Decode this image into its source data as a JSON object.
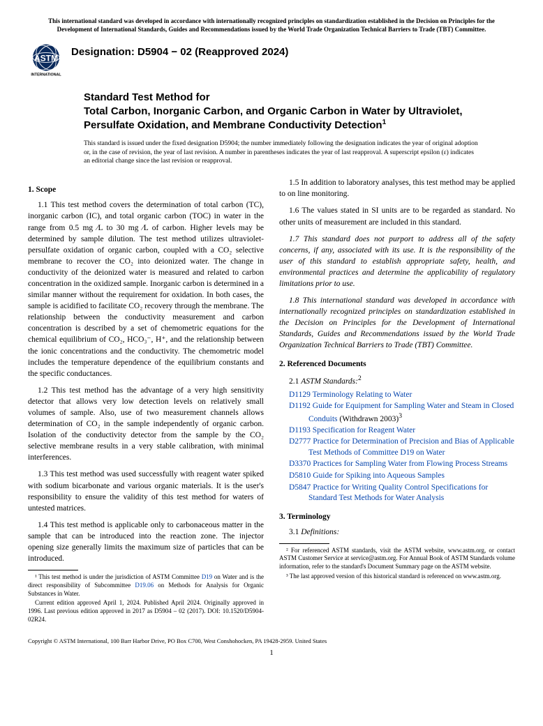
{
  "top_notice": "This international standard was developed in accordance with internationally recognized principles on standardization established in the Decision on Principles for the Development of International Standards, Guides and Recommendations issued by the World Trade Organization Technical Barriers to Trade (TBT) Committee.",
  "logo_text_top": "ASTM",
  "logo_text_bottom": "INTERNATIONAL",
  "designation": "Designation: D5904 − 02 (Reapproved 2024)",
  "title_prefix": "Standard Test Method for",
  "title_main": "Total Carbon, Inorganic Carbon, and Organic Carbon in Water by Ultraviolet, Persulfate Oxidation, and Membrane Conductivity Detection",
  "title_sup": "1",
  "issue_note": "This standard is issued under the fixed designation D5904; the number immediately following the designation indicates the year of original adoption or, in the case of revision, the year of last revision. A number in parentheses indicates the year of last reapproval. A superscript epsilon (ε) indicates an editorial change since the last revision or reapproval.",
  "sections": {
    "scope_head": "1. Scope",
    "p1_1": "1.1 This test method covers the determination of total carbon (TC), inorganic carbon (IC), and total organic carbon (TOC) in water in the range from 0.5 mg ⁄L to 30 mg ⁄L of carbon. Higher levels may be determined by sample dilution. The test method utilizes ultraviolet-persulfate oxidation of organic carbon, coupled with a CO₂ selective membrane to recover the CO₂ into deionized water. The change in conductivity of the deionized water is measured and related to carbon concentration in the oxidized sample. Inorganic carbon is determined in a similar manner without the requirement for oxidation. In both cases, the sample is acidified to facilitate CO₂ recovery through the membrane. The relationship between the conductivity measurement and carbon concentration is described by a set of chemometric equations for the chemical equilibrium of CO₂, HCO₃⁻, H⁺, and the relationship between the ionic concentrations and the conductivity. The chemometric model includes the temperature dependence of the equilibrium constants and the specific conductances.",
    "p1_2": "1.2 This test method has the advantage of a very high sensitivity detector that allows very low detection levels on relatively small volumes of sample. Also, use of two measurement channels allows determination of CO₂ in the sample independently of organic carbon. Isolation of the conductivity detector from the sample by the CO₂ selective membrane results in a very stable calibration, with minimal interferences.",
    "p1_3": "1.3 This test method was used successfully with reagent water spiked with sodium bicarbonate and various organic materials. It is the user's responsibility to ensure the validity of this test method for waters of untested matrices.",
    "p1_4": "1.4 This test method is applicable only to carbonaceous matter in the sample that can be introduced into the reaction zone. The injector opening size generally limits the maximum size of particles that can be introduced.",
    "p1_5": "1.5 In addition to laboratory analyses, this test method may be applied to on line monitoring.",
    "p1_6": "1.6 The values stated in SI units are to be regarded as standard. No other units of measurement are included in this standard.",
    "p1_7": "1.7 This standard does not purport to address all of the safety concerns, if any, associated with its use. It is the responsibility of the user of this standard to establish appropriate safety, health, and environmental practices and determine the applicability of regulatory limitations prior to use.",
    "p1_8": "1.8 This international standard was developed in accordance with internationally recognized principles on standardization established in the Decision on Principles for the Development of International Standards, Guides and Recommendations issued by the World Trade Organization Technical Barriers to Trade (TBT) Committee.",
    "refdocs_head": "2. Referenced Documents",
    "astm_std_label": "2.1 ",
    "astm_std_italic": "ASTM Standards:",
    "astm_std_sup": "2",
    "refs": [
      {
        "code": "D1129",
        "title": "Terminology Relating to Water",
        "extra": ""
      },
      {
        "code": "D1192",
        "title": "Guide for Equipment for Sampling Water and Steam in Closed Conduits",
        "extra": " (Withdrawn 2003)",
        "extra_sup": "3"
      },
      {
        "code": "D1193",
        "title": "Specification for Reagent Water",
        "extra": ""
      },
      {
        "code": "D2777",
        "title": "Practice for Determination of Precision and Bias of Applicable Test Methods of Committee D19 on Water",
        "extra": ""
      },
      {
        "code": "D3370",
        "title": "Practices for Sampling Water from Flowing Process Streams",
        "extra": ""
      },
      {
        "code": "D5810",
        "title": "Guide for Spiking into Aqueous Samples",
        "extra": ""
      },
      {
        "code": "D5847",
        "title": "Practice for Writing Quality Control Specifications for Standard Test Methods for Water Analysis",
        "extra": ""
      }
    ],
    "term_head": "3. Terminology",
    "defs_label": "3.1 ",
    "defs_italic": "Definitions:"
  },
  "footnotes_left": {
    "fn1a": "¹ This test method is under the jurisdiction of ASTM Committee ",
    "fn1a_link": "D19",
    "fn1b": " on Water and is the direct responsibility of Subcommittee ",
    "fn1b_link": "D19.06",
    "fn1c": " on Methods for Analysis for Organic Substances in Water.",
    "fn1d": "Current edition approved April 1, 2024. Published April 2024. Originally approved in 1996. Last previous edition approved in 2017 as D5904 – 02 (2017). DOI: 10.1520/D5904-02R24."
  },
  "footnotes_right": {
    "fn2": "² For referenced ASTM standards, visit the ASTM website, www.astm.org, or contact ASTM Customer Service at service@astm.org. For Annual Book of ASTM Standards volume information, refer to the standard's Document Summary page on the ASTM website.",
    "fn3": "³ The last approved version of this historical standard is referenced on www.astm.org."
  },
  "copyright": "Copyright © ASTM International, 100 Barr Harbor Drive, PO Box C700, West Conshohocken, PA 19428-2959. United States",
  "page_num": "1",
  "colors": {
    "link": "#0645ad",
    "text": "#000000",
    "bg": "#ffffff"
  }
}
